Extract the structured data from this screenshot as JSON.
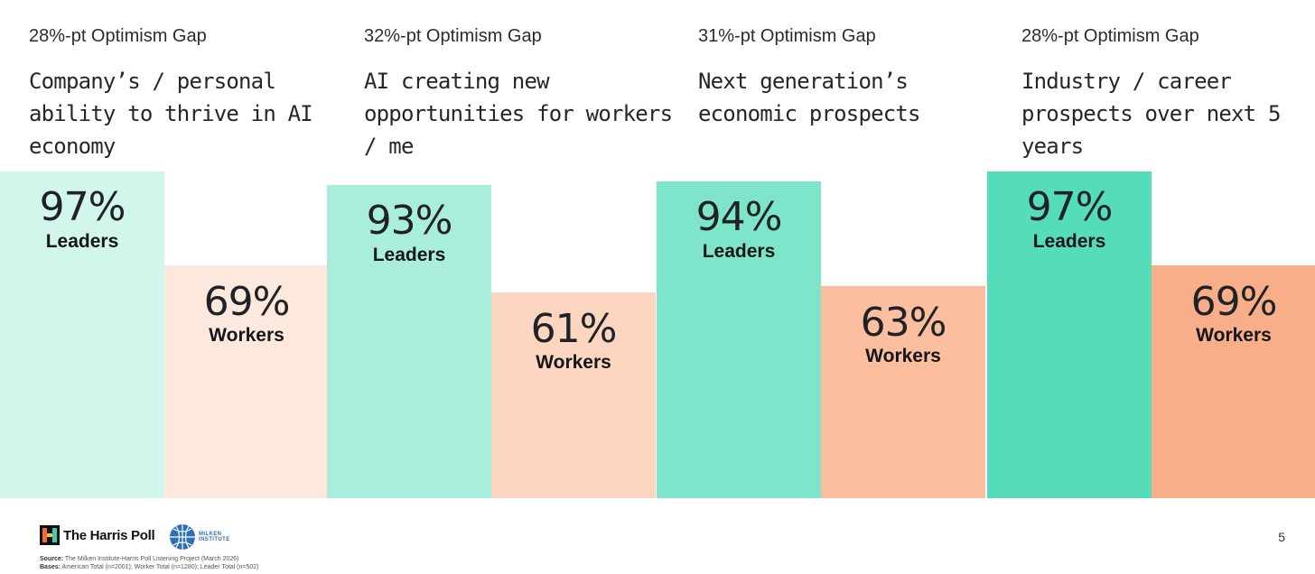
{
  "chart_data": [
    {
      "type": "bar",
      "gap_label": "28%-pt Optimism Gap",
      "title": "Company’s / personal ability to thrive in AI economy",
      "categories": [
        "Leaders",
        "Workers"
      ],
      "values": [
        97,
        69
      ],
      "labels": [
        "97%",
        "69%"
      ],
      "colors": [
        "#d2f5ec",
        "#fde8de"
      ]
    },
    {
      "type": "bar",
      "gap_label": "32%-pt Optimism Gap",
      "title": "AI creating new opportunities for workers / me",
      "categories": [
        "Leaders",
        "Workers"
      ],
      "values": [
        93,
        61
      ],
      "labels": [
        "93%",
        "61%"
      ],
      "colors": [
        "#a9eedc",
        "#fcd6c1"
      ]
    },
    {
      "type": "bar",
      "gap_label": "31%-pt Optimism Gap",
      "title": "Next generation’s economic prospects",
      "categories": [
        "Leaders",
        "Workers"
      ],
      "values": [
        94,
        63
      ],
      "labels": [
        "94%",
        "63%"
      ],
      "colors": [
        "#7ee5ca",
        "#fbbfa0"
      ]
    },
    {
      "type": "bar",
      "gap_label": "28%-pt Optimism Gap",
      "title": "Industry / career prospects over next 5 years",
      "categories": [
        "Leaders",
        "Workers"
      ],
      "values": [
        97,
        69
      ],
      "labels": [
        "97%",
        "69%"
      ],
      "colors": [
        "#55dcb9",
        "#f9ae8a"
      ]
    }
  ],
  "footer": {
    "harris_brand": "The Harris Poll",
    "milken_brand_line1": "MILKEN",
    "milken_brand_line2": "INSTITUTE",
    "source_label": "Source:",
    "source_text": "The Milken Institute-Harris Poll Listening Project (March 2026)",
    "bases_label": "Bases:",
    "bases_text": "American Total (n=2001); Worker Total (n=1280); Leader Total (n=502)",
    "page_number": "5"
  }
}
